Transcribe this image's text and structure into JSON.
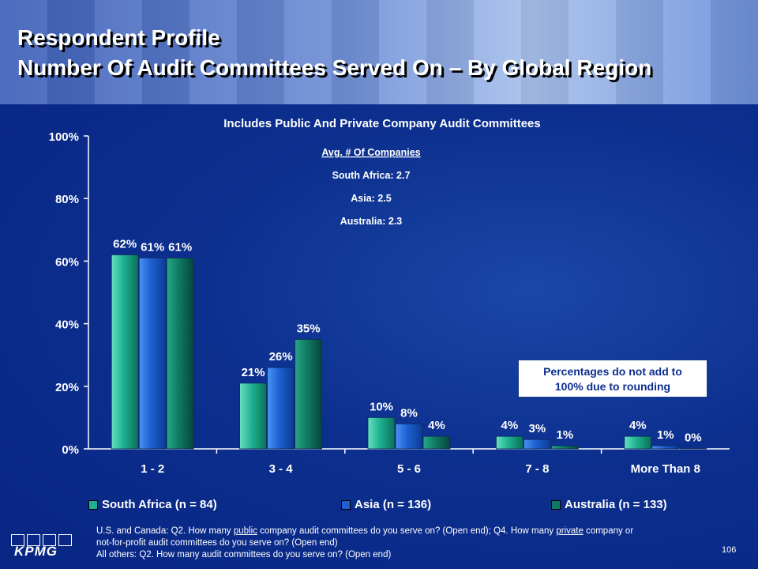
{
  "header": {
    "title_line1": "Respondent Profile",
    "title_line2": "Number Of Audit Committees Served On – By Global Region"
  },
  "chart_data": {
    "type": "bar",
    "title": "Includes Public And Private Company Audit Committees",
    "categories": [
      "1 - 2",
      "3 - 4",
      "5 - 6",
      "7 - 8",
      "More Than 8"
    ],
    "series": [
      {
        "name": "South Africa (n = 84)",
        "values": [
          62,
          21,
          10,
          4,
          4
        ],
        "labels": [
          "62%",
          "21%",
          "10%",
          "4%",
          "4%"
        ],
        "color": "#1fb08f"
      },
      {
        "name": "Asia (n = 136)",
        "values": [
          61,
          26,
          8,
          3,
          1
        ],
        "labels": [
          "61%",
          "26%",
          "8%",
          "3%",
          "1%"
        ],
        "color": "#1d5fcf"
      },
      {
        "name": "Australia (n = 133)",
        "values": [
          61,
          35,
          4,
          1,
          0
        ],
        "labels": [
          "61%",
          "35%",
          "4%",
          "1%",
          "0%"
        ],
        "color": "#0f7a63"
      }
    ],
    "ylim": [
      0,
      100
    ],
    "yticks": [
      "0%",
      "20%",
      "40%",
      "60%",
      "80%",
      "100%"
    ],
    "legend_position": "bottom",
    "grid": false
  },
  "annotation": {
    "heading": "Avg. # Of Companies",
    "lines": [
      "South Africa: 2.7",
      "Asia: 2.5",
      "Australia: 2.3"
    ]
  },
  "note_box": {
    "line1": "Percentages do not add to",
    "line2": "100% due to rounding"
  },
  "footnote": {
    "l1_a": "U.S. and Canada: Q2. How many ",
    "l1_b": "public",
    "l1_c": " company audit committees do you serve on? (Open end); Q4. How many ",
    "l1_d": "private",
    "l1_e": " company or",
    "line2": "not-for-profit audit committees do you serve on? (Open end)",
    "line3": "All others: Q2. How many audit committees do you serve on? (Open end)"
  },
  "logo_text": "KPMG",
  "page_number": "106"
}
